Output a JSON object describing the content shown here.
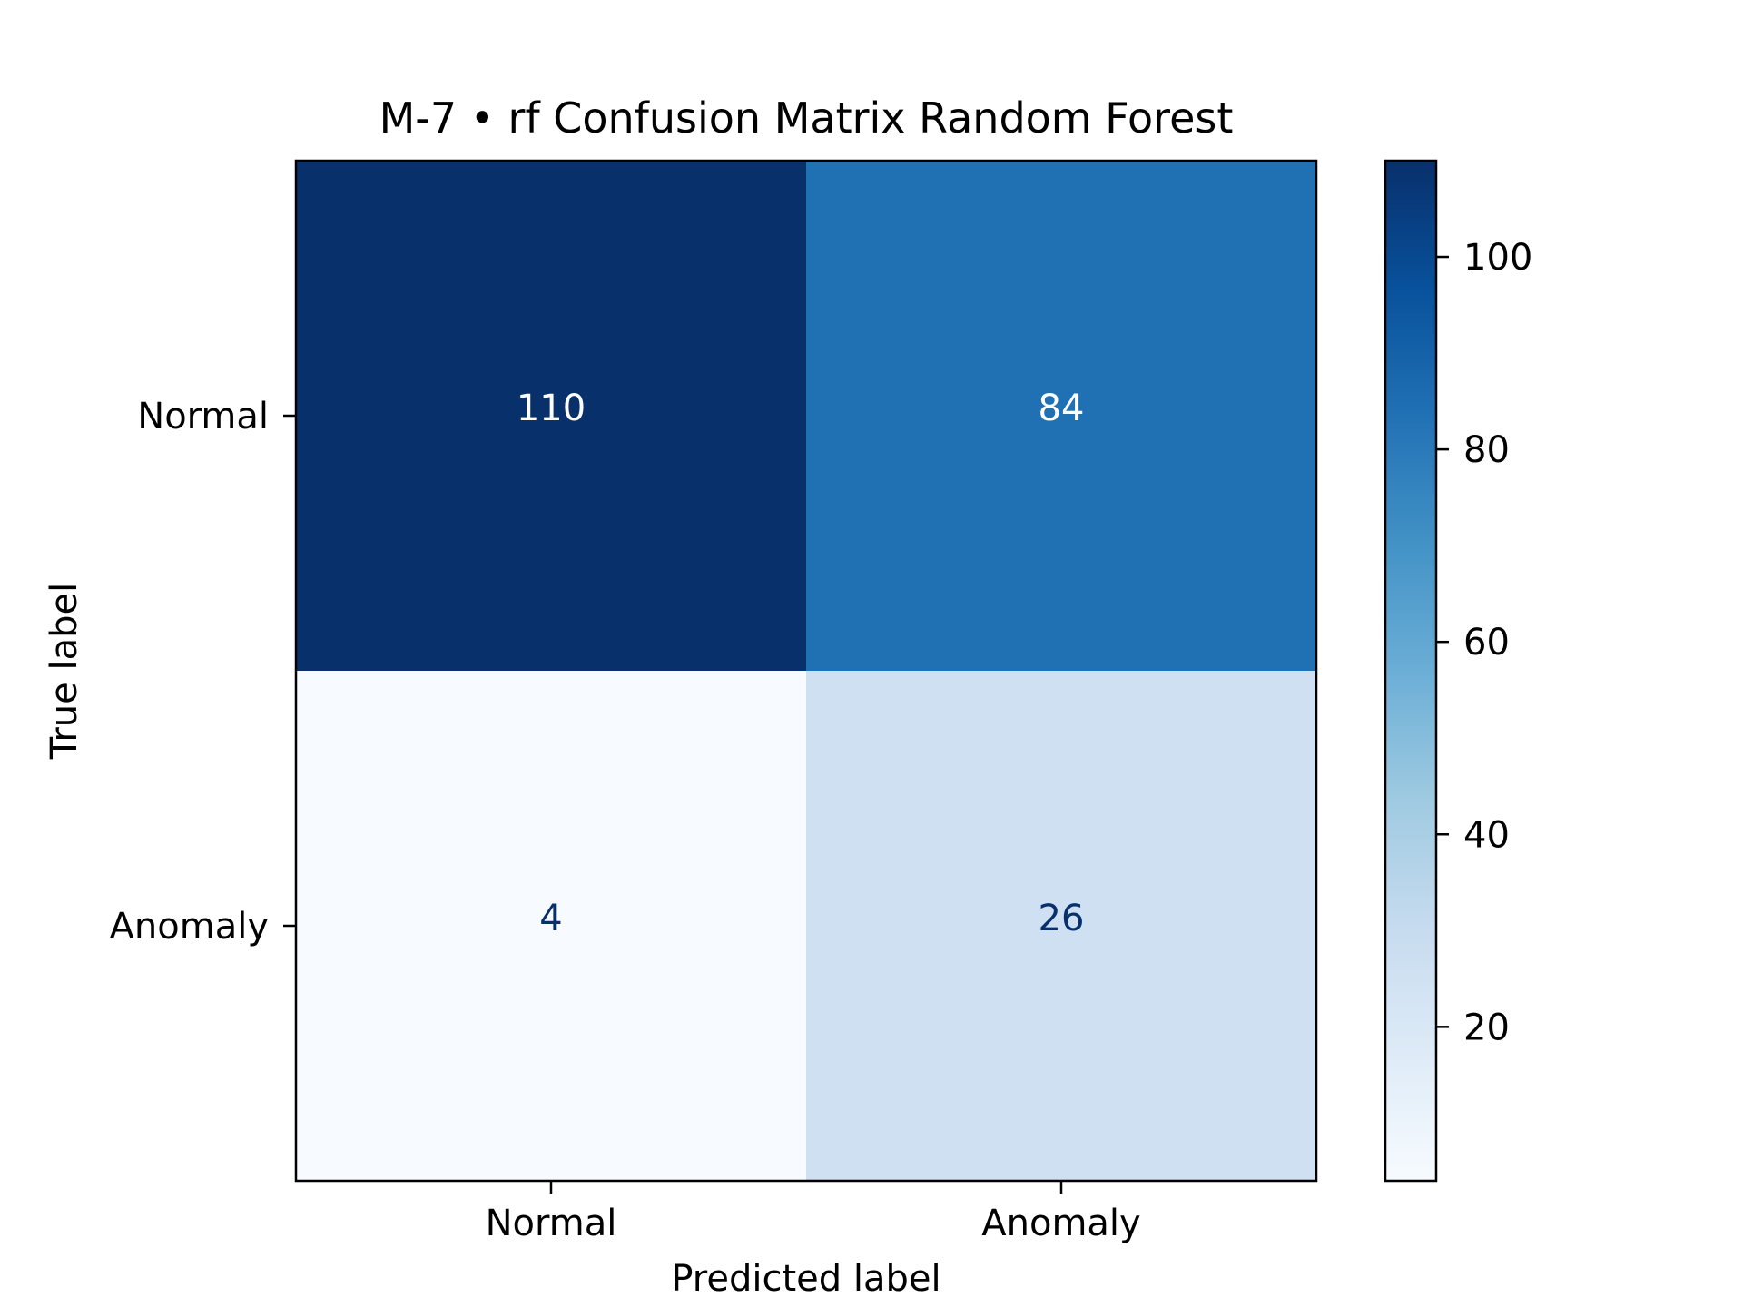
{
  "chart_data": {
    "type": "heatmap",
    "title": "M-7 • rf Confusion Matrix Random Forest",
    "xlabel": "Predicted label",
    "ylabel": "True label",
    "x_categories": [
      "Normal",
      "Anomaly"
    ],
    "y_categories": [
      "Normal",
      "Anomaly"
    ],
    "values": [
      [
        110,
        84
      ],
      [
        4,
        26
      ]
    ],
    "colormap": "Blues",
    "colorbar": {
      "range": [
        4,
        110
      ],
      "ticks": [
        "20",
        "40",
        "60",
        "80",
        "100"
      ],
      "tick_values": [
        20,
        40,
        60,
        80,
        100
      ]
    },
    "grid": false
  }
}
